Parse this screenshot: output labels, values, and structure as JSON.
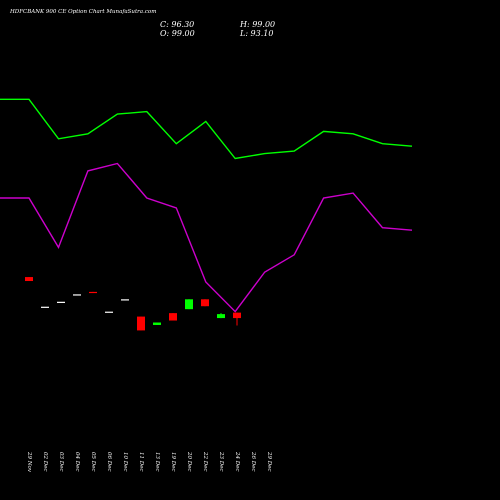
{
  "header": {
    "title": "HDFCBANK 900 CE Option Chart MunafaSutra.com",
    "close_label": "C: 96.30",
    "open_label": "O: 99.00",
    "high_label": "H: 99.00",
    "low_label": "L: 93.10"
  },
  "colors": {
    "background": "#000000",
    "up": "#00ff00",
    "down": "#ff0000",
    "line_upper": "#00ff00",
    "line_lower": "#cc00cc",
    "text": "#ffffff"
  },
  "chart_data": {
    "type": "candlestick",
    "categories": [
      "29 Nov",
      "02 Dec",
      "03 Dec",
      "04 Dec",
      "05 Dec",
      "06 Dec",
      "10 Dec",
      "11 Dec",
      "13 Dec",
      "19 Dec",
      "20 Dec",
      "22 Dec",
      "23 Dec",
      "24 Dec",
      "26 Dec",
      "29 Dec"
    ],
    "candles": [
      {
        "o": 94.0,
        "h": 94.0,
        "l": 93.2,
        "c": 93.2
      },
      {
        "o": 88.0,
        "h": 88.0,
        "l": 88.0,
        "c": 88.0
      },
      {
        "o": 89.0,
        "h": 89.0,
        "l": 89.0,
        "c": 89.0
      },
      {
        "o": 90.5,
        "h": 90.5,
        "l": 90.5,
        "c": 90.5
      },
      {
        "o": 91.0,
        "h": 91.0,
        "l": 90.8,
        "c": 90.8
      },
      {
        "o": 87.0,
        "h": 87.0,
        "l": 87.0,
        "c": 87.0
      },
      {
        "o": 89.5,
        "h": 89.5,
        "l": 89.5,
        "c": 89.5
      },
      {
        "o": 86.0,
        "h": 86.0,
        "l": 83.2,
        "c": 83.2
      },
      {
        "o": 84.3,
        "h": 84.8,
        "l": 84.3,
        "c": 84.8
      },
      {
        "o": 86.7,
        "h": 86.7,
        "l": 85.2,
        "c": 85.2
      },
      {
        "o": 87.5,
        "h": 89.5,
        "l": 87.5,
        "c": 89.5
      },
      {
        "o": 89.5,
        "h": 89.5,
        "l": 88.1,
        "c": 88.1
      },
      {
        "o": 85.7,
        "h": 86.7,
        "l": 85.7,
        "c": 86.5
      },
      {
        "o": 86.8,
        "h": 86.8,
        "l": 84.2,
        "c": 85.7
      }
    ],
    "candle_category_index": [
      0,
      1,
      2,
      3,
      4,
      5,
      6,
      7,
      8,
      9,
      10,
      11,
      12,
      13
    ],
    "lines": [
      {
        "color": "#00ff00",
        "values": [
          130,
          130,
          122,
          123,
          127,
          127.5,
          121,
          125.5,
          118,
          119,
          119.5,
          123.5,
          123,
          121,
          120.5
        ]
      },
      {
        "color": "#cc00cc",
        "values": [
          110,
          110,
          100,
          115.5,
          117,
          110,
          108,
          93,
          87,
          95,
          98.5,
          110,
          111,
          104,
          103.5
        ]
      }
    ],
    "ylim": [
      60,
      142
    ]
  }
}
